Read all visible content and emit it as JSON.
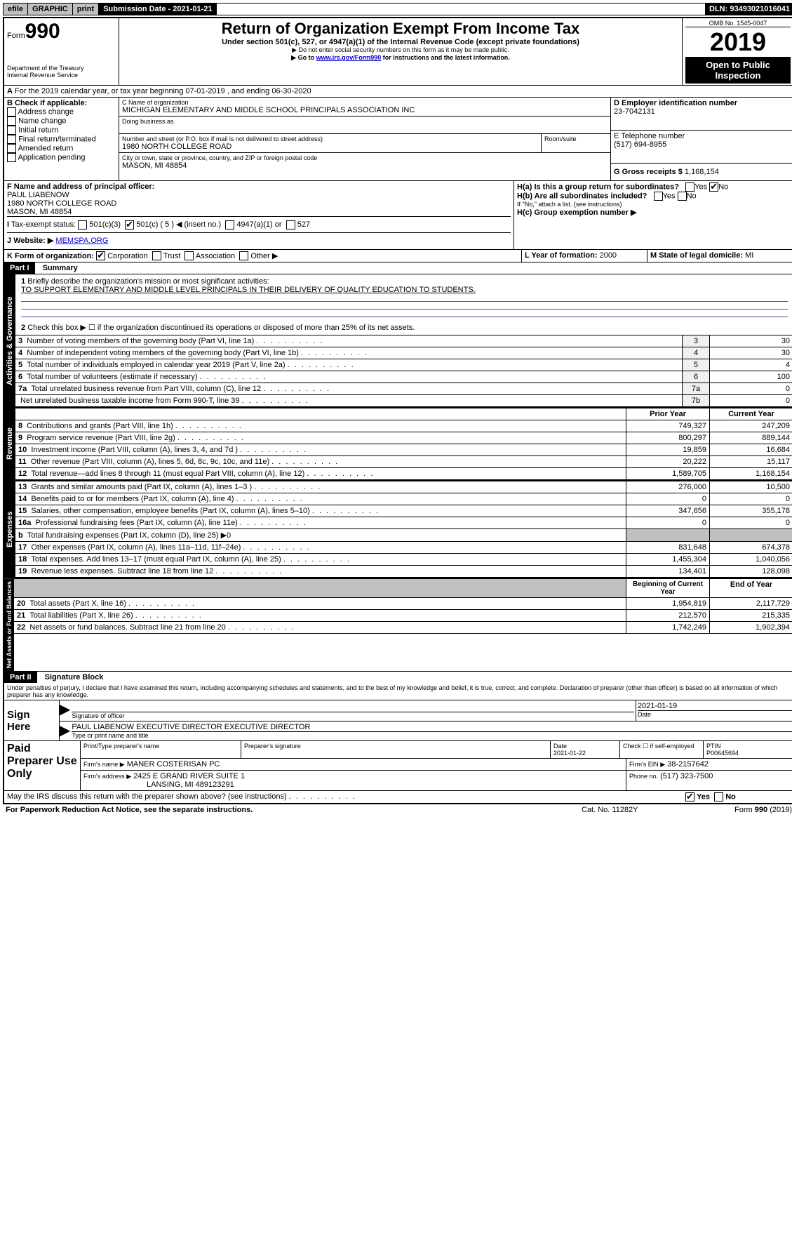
{
  "top": {
    "efile": "efile",
    "graphic": "GRAPHIC",
    "print": "print",
    "subdate": "Submission Date - 2021-01-21",
    "dln": "DLN: 93493021016041"
  },
  "header": {
    "formno": "990",
    "formlabel": "Form",
    "title": "Return of Organization Exempt From Income Tax",
    "subtitle": "Under section 501(c), 527, or 4947(a)(1) of the Internal Revenue Code (except private foundations)",
    "note1": "▶ Do not enter social security numbers on this form as it may be made public.",
    "note2_pre": "▶ Go to ",
    "note2_link": "www.irs.gov/Form990",
    "note2_post": " for instructions and the latest information.",
    "dept": "Department of the Treasury",
    "irs": "Internal Revenue Service",
    "omb": "OMB No. 1545-0047",
    "year": "2019",
    "open": "Open to Public Inspection"
  },
  "A": {
    "text": "For the 2019 calendar year, or tax year beginning 07-01-2019   , and ending 06-30-2020"
  },
  "B": {
    "label": "B Check if applicable:",
    "opts": [
      "Address change",
      "Name change",
      "Initial return",
      "Final return/terminated",
      "Amended return",
      "Application pending"
    ]
  },
  "C": {
    "label": "C Name of organization",
    "name": "MICHIGAN ELEMENTARY AND MIDDLE SCHOOL PRINCIPALS ASSOCIATION INC",
    "dba_label": "Doing business as",
    "addr_label": "Number and street (or P.O. box if mail is not delivered to street address)",
    "addr": "1980 NORTH COLLEGE ROAD",
    "room_label": "Room/suite",
    "city_label": "City or town, state or province, country, and ZIP or foreign postal code",
    "city": "MASON, MI  48854"
  },
  "D": {
    "label": "D Employer identification number",
    "val": "23-7042131"
  },
  "E": {
    "label": "E Telephone number",
    "val": "(517) 694-8955"
  },
  "G": {
    "label": "G Gross receipts $",
    "val": "1,168,154"
  },
  "F": {
    "label": "F  Name and address of principal officer:",
    "name": "PAUL LIABENOW",
    "addr1": "1980 NORTH COLLEGE ROAD",
    "addr2": "MASON, MI  48854"
  },
  "H": {
    "a": "H(a)  Is this a group return for subordinates?",
    "b": "H(b)  Are all subordinates included?",
    "bnote": "If \"No,\" attach a list. (see instructions)",
    "c": "H(c)  Group exemption number ▶",
    "yes": "Yes",
    "no": "No"
  },
  "I": {
    "label": "Tax-exempt status:",
    "c3": "501(c)(3)",
    "c": "501(c) ( 5 ) ◀ (insert no.)",
    "a1": "4947(a)(1) or",
    "527": "527"
  },
  "J": {
    "label": "Website: ▶",
    "val": "MEMSPA.ORG"
  },
  "K": {
    "label": "K Form of organization:",
    "corp": "Corporation",
    "trust": "Trust",
    "assoc": "Association",
    "other": "Other ▶"
  },
  "L": {
    "label": "L Year of formation:",
    "val": "2000"
  },
  "M": {
    "label": "M State of legal domicile:",
    "val": "MI"
  },
  "part1": {
    "title": "Part I",
    "sub": "Summary",
    "l1": "Briefly describe the organization's mission or most significant activities:",
    "mission": "TO SUPPORT ELEMENTARY AND MIDDLE LEVEL PRINCIPALS IN THEIR DELIVERY OF QUALITY EDUCATION TO STUDENTS.",
    "l2": "Check this box ▶ ☐  if the organization discontinued its operations or disposed of more than 25% of its net assets.",
    "rows_gov": [
      {
        "n": "3",
        "d": "Number of voting members of the governing body (Part VI, line 1a)",
        "c": "3",
        "v": "30"
      },
      {
        "n": "4",
        "d": "Number of independent voting members of the governing body (Part VI, line 1b)",
        "c": "4",
        "v": "30"
      },
      {
        "n": "5",
        "d": "Total number of individuals employed in calendar year 2019 (Part V, line 2a)",
        "c": "5",
        "v": "4"
      },
      {
        "n": "6",
        "d": "Total number of volunteers (estimate if necessary)",
        "c": "6",
        "v": "100"
      },
      {
        "n": "7a",
        "d": "Total unrelated business revenue from Part VIII, column (C), line 12",
        "c": "7a",
        "v": "0"
      },
      {
        "n": "",
        "d": "Net unrelated business taxable income from Form 990-T, line 39",
        "c": "7b",
        "v": "0"
      }
    ],
    "hdr_b": "b",
    "hdr_prior": "Prior Year",
    "hdr_curr": "Current Year",
    "rows_rev": [
      {
        "n": "8",
        "d": "Contributions and grants (Part VIII, line 1h)",
        "p": "749,327",
        "c": "247,209"
      },
      {
        "n": "9",
        "d": "Program service revenue (Part VIII, line 2g)",
        "p": "800,297",
        "c": "889,144"
      },
      {
        "n": "10",
        "d": "Investment income (Part VIII, column (A), lines 3, 4, and 7d )",
        "p": "19,859",
        "c": "16,684"
      },
      {
        "n": "11",
        "d": "Other revenue (Part VIII, column (A), lines 5, 6d, 8c, 9c, 10c, and 11e)",
        "p": "20,222",
        "c": "15,117"
      },
      {
        "n": "12",
        "d": "Total revenue—add lines 8 through 11 (must equal Part VIII, column (A), line 12)",
        "p": "1,589,705",
        "c": "1,168,154"
      }
    ],
    "rows_exp": [
      {
        "n": "13",
        "d": "Grants and similar amounts paid (Part IX, column (A), lines 1–3 )",
        "p": "276,000",
        "c": "10,500"
      },
      {
        "n": "14",
        "d": "Benefits paid to or for members (Part IX, column (A), line 4)",
        "p": "0",
        "c": "0"
      },
      {
        "n": "15",
        "d": "Salaries, other compensation, employee benefits (Part IX, column (A), lines 5–10)",
        "p": "347,656",
        "c": "355,178"
      },
      {
        "n": "16a",
        "d": "Professional fundraising fees (Part IX, column (A), line 11e)",
        "p": "0",
        "c": "0"
      },
      {
        "n": "b",
        "d": "Total fundraising expenses (Part IX, column (D), line 25) ▶0",
        "p": "",
        "c": "",
        "grey": true
      },
      {
        "n": "17",
        "d": "Other expenses (Part IX, column (A), lines 11a–11d, 11f–24e)",
        "p": "831,648",
        "c": "674,378"
      },
      {
        "n": "18",
        "d": "Total expenses. Add lines 13–17 (must equal Part IX, column (A), line 25)",
        "p": "1,455,304",
        "c": "1,040,056"
      },
      {
        "n": "19",
        "d": "Revenue less expenses. Subtract line 18 from line 12",
        "p": "134,401",
        "c": "128,098"
      }
    ],
    "hdr_beg": "Beginning of Current Year",
    "hdr_end": "End of Year",
    "rows_na": [
      {
        "n": "20",
        "d": "Total assets (Part X, line 16)",
        "p": "1,954,819",
        "c": "2,117,729"
      },
      {
        "n": "21",
        "d": "Total liabilities (Part X, line 26)",
        "p": "212,570",
        "c": "215,335"
      },
      {
        "n": "22",
        "d": "Net assets or fund balances. Subtract line 21 from line 20",
        "p": "1,742,249",
        "c": "1,902,394"
      }
    ],
    "vlabels": {
      "gov": "Activities & Governance",
      "rev": "Revenue",
      "exp": "Expenses",
      "na": "Net Assets or Fund Balances"
    }
  },
  "part2": {
    "title": "Part II",
    "sub": "Signature Block",
    "decl": "Under penalties of perjury, I declare that I have examined this return, including accompanying schedules and statements, and to the best of my knowledge and belief, it is true, correct, and complete. Declaration of preparer (other than officer) is based on all information of which preparer has any knowledge.",
    "sign": "Sign Here",
    "sigoff": "Signature of officer",
    "sigdate": "2021-01-19",
    "datelbl": "Date",
    "typed": "PAUL LIABENOW EXECUTIVE DIRECTOR  EXECUTIVE DIRECTOR",
    "typedlbl": "Type or print name and title",
    "paid": "Paid Preparer Use Only",
    "p_name_lbl": "Print/Type preparer's name",
    "p_sig_lbl": "Preparer's signature",
    "p_date_lbl": "Date",
    "p_date": "2021-01-22",
    "p_check": "Check ☐ if self-employed",
    "ptin_lbl": "PTIN",
    "ptin": "P00645694",
    "firm_lbl": "Firm's name    ▶",
    "firm": "MANER COSTERISAN PC",
    "ein_lbl": "Firm's EIN ▶",
    "ein": "38-2157642",
    "faddr_lbl": "Firm's address ▶",
    "faddr1": "2425 E GRAND RIVER SUITE 1",
    "faddr2": "LANSING, MI  489123291",
    "phone_lbl": "Phone no.",
    "phone": "(517) 323-7500",
    "discuss": "May the IRS discuss this return with the preparer shown above? (see instructions)",
    "pra": "For Paperwork Reduction Act Notice, see the separate instructions.",
    "cat": "Cat. No. 11282Y",
    "formref": "Form 990 (2019)"
  }
}
